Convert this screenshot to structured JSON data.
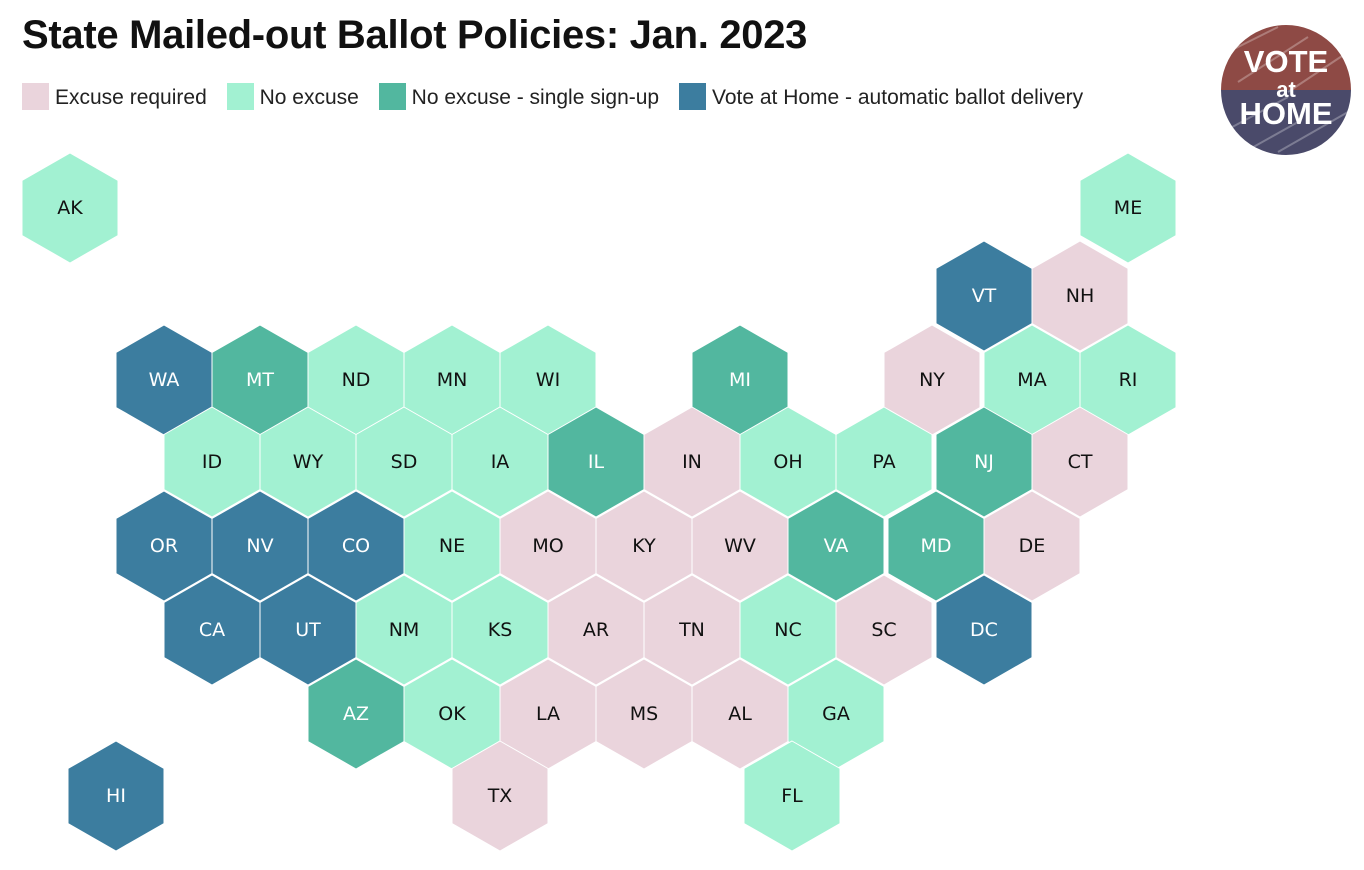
{
  "title": "State Mailed-out Ballot Policies: Jan. 2023",
  "legend": [
    {
      "key": "excuse",
      "label": "Excuse required",
      "color": "#ead4dc"
    },
    {
      "key": "noexcuse",
      "label": "No excuse",
      "color": "#a2f1d2"
    },
    {
      "key": "single",
      "label": "No excuse - single sign-up",
      "color": "#52b79f"
    },
    {
      "key": "vah",
      "label": "Vote at Home - automatic ballot delivery",
      "color": "#3c7d9f"
    }
  ],
  "logo": {
    "line1": "VOTE",
    "line2": "at",
    "line3": "HOME",
    "top_color": "#8e4a45",
    "bottom_color": "#4a4a6a"
  },
  "states": [
    {
      "abbr": "AK",
      "policy": "noexcuse"
    },
    {
      "abbr": "ME",
      "policy": "noexcuse"
    },
    {
      "abbr": "VT",
      "policy": "vah"
    },
    {
      "abbr": "NH",
      "policy": "excuse"
    },
    {
      "abbr": "WA",
      "policy": "vah"
    },
    {
      "abbr": "MT",
      "policy": "single"
    },
    {
      "abbr": "ND",
      "policy": "noexcuse"
    },
    {
      "abbr": "MN",
      "policy": "noexcuse"
    },
    {
      "abbr": "WI",
      "policy": "noexcuse"
    },
    {
      "abbr": "MI",
      "policy": "single"
    },
    {
      "abbr": "NY",
      "policy": "excuse"
    },
    {
      "abbr": "MA",
      "policy": "noexcuse"
    },
    {
      "abbr": "RI",
      "policy": "noexcuse"
    },
    {
      "abbr": "ID",
      "policy": "noexcuse"
    },
    {
      "abbr": "WY",
      "policy": "noexcuse"
    },
    {
      "abbr": "SD",
      "policy": "noexcuse"
    },
    {
      "abbr": "IA",
      "policy": "noexcuse"
    },
    {
      "abbr": "IL",
      "policy": "single"
    },
    {
      "abbr": "IN",
      "policy": "excuse"
    },
    {
      "abbr": "OH",
      "policy": "noexcuse"
    },
    {
      "abbr": "PA",
      "policy": "noexcuse"
    },
    {
      "abbr": "NJ",
      "policy": "single"
    },
    {
      "abbr": "CT",
      "policy": "excuse"
    },
    {
      "abbr": "OR",
      "policy": "vah"
    },
    {
      "abbr": "NV",
      "policy": "vah"
    },
    {
      "abbr": "CO",
      "policy": "vah"
    },
    {
      "abbr": "NE",
      "policy": "noexcuse"
    },
    {
      "abbr": "MO",
      "policy": "excuse"
    },
    {
      "abbr": "KY",
      "policy": "excuse"
    },
    {
      "abbr": "WV",
      "policy": "excuse"
    },
    {
      "abbr": "VA",
      "policy": "single"
    },
    {
      "abbr": "MD",
      "policy": "single"
    },
    {
      "abbr": "DE",
      "policy": "excuse"
    },
    {
      "abbr": "CA",
      "policy": "vah"
    },
    {
      "abbr": "UT",
      "policy": "vah"
    },
    {
      "abbr": "NM",
      "policy": "noexcuse"
    },
    {
      "abbr": "KS",
      "policy": "noexcuse"
    },
    {
      "abbr": "AR",
      "policy": "excuse"
    },
    {
      "abbr": "TN",
      "policy": "excuse"
    },
    {
      "abbr": "NC",
      "policy": "noexcuse"
    },
    {
      "abbr": "SC",
      "policy": "excuse"
    },
    {
      "abbr": "DC",
      "policy": "vah"
    },
    {
      "abbr": "AZ",
      "policy": "single"
    },
    {
      "abbr": "OK",
      "policy": "noexcuse"
    },
    {
      "abbr": "LA",
      "policy": "excuse"
    },
    {
      "abbr": "MS",
      "policy": "excuse"
    },
    {
      "abbr": "AL",
      "policy": "excuse"
    },
    {
      "abbr": "GA",
      "policy": "noexcuse"
    },
    {
      "abbr": "TX",
      "policy": "excuse"
    },
    {
      "abbr": "FL",
      "policy": "noexcuse"
    },
    {
      "abbr": "HI",
      "policy": "vah"
    }
  ]
}
